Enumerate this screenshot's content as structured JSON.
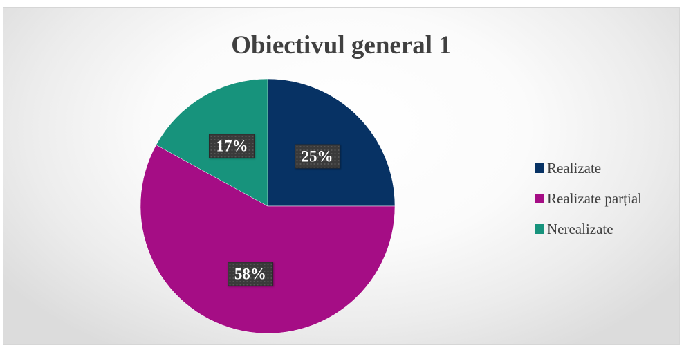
{
  "chart_data": {
    "type": "pie",
    "title": "Obiectivul general 1",
    "categories": [
      "Realizate",
      "Realizate parțial",
      "Nerealizate"
    ],
    "values": [
      25,
      58,
      17
    ],
    "data_labels": [
      "25%",
      "58%",
      "17%"
    ],
    "colors": [
      "#073264",
      "#a50d85",
      "#17937c"
    ],
    "legend_position": "right"
  }
}
